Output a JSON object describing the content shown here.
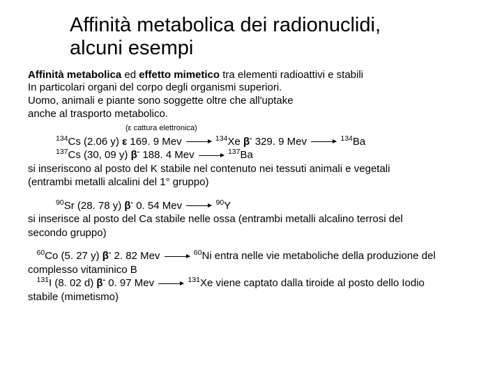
{
  "title_l1": "Affinità metabolica dei radionuclidi,",
  "title_l2": "alcuni esempi",
  "p1_a": "Affinità metabolica",
  "p1_b": " ed ",
  "p1_c": "effetto mimetico",
  "p1_d": " tra elementi radioattivi e stabili",
  "p2": "In particolari organi del corpo degli organismi superiori.",
  "p3": "Uomo, animali e piante sono soggette oltre che all'uptake",
  "p4": "anche al trasporto metabolico.",
  "note": "(ε cattura elettronica)",
  "cs134_pre": "134",
  "cs134": "Cs (2.06 y) ",
  "cs134_e": "ε",
  "cs134_mev": " 169. 9 Mev",
  "xe134_pre": "134",
  "xe134": "Xe   ",
  "beta": "β",
  "minus": "-",
  "xe134_mev": " 329. 9 Mev",
  "ba134_pre": "134",
  "ba134": "Ba",
  "cs137_pre": "137",
  "cs137": "Cs (30, 09 y) ",
  "cs137_mev": " 188. 4 Mev",
  "ba137_pre": "137",
  "ba137": "Ba",
  "cs_body1": "si inseriscono al posto del K stabile nel contenuto nei tessuti animali e vegetali",
  "cs_body2": "(entrambi metalli alcalini del 1° gruppo)",
  "sr90_pre": "90",
  "sr90": "Sr (28. 78 y) ",
  "sr90_mev": "  0. 54 Mev",
  "y90_pre": "90",
  "y90": "Y",
  "sr_body1": "si inserisce al posto del Ca stabile nelle ossa (entrambi metalli alcalino terrosi del",
  "sr_body2": "secondo gruppo)",
  "co60_pre": "60",
  "co60": "Co (5. 27 y) ",
  "co60_mev": "  2. 82 Mev",
  "ni60_pre": "60",
  "ni60": "Ni entra nelle vie metaboliche della produzione del",
  "co_body": "complesso  vitaminico B",
  "i131_pre": "131",
  "i131": "I (8. 02 d) ",
  "i131_mev": "  0. 97 Mev",
  "xe131_pre": "131",
  "xe131": "Xe viene captato dalla tiroide al posto dello Iodio",
  "i_body": "stabile (mimetismo)"
}
